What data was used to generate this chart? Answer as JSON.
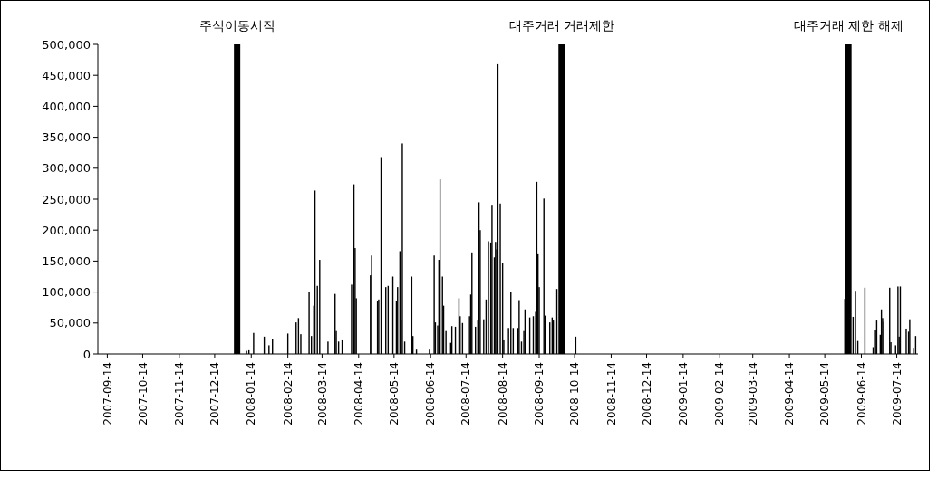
{
  "chart_data": {
    "type": "bar",
    "color": "#000000",
    "x": [
      "2008-01-10",
      "2008-01-12",
      "2008-01-16",
      "2008-01-25",
      "2008-01-29",
      "2008-02-01",
      "2008-02-14",
      "2008-02-21",
      "2008-02-23",
      "2008-02-25",
      "2008-03-03",
      "2008-03-05",
      "2008-03-07",
      "2008-03-08",
      "2008-03-10",
      "2008-03-12",
      "2008-03-19",
      "2008-03-25",
      "2008-03-26",
      "2008-03-28",
      "2008-03-31",
      "2008-04-08",
      "2008-04-10",
      "2008-04-11",
      "2008-04-12",
      "2008-04-24",
      "2008-04-25",
      "2008-04-30",
      "2008-05-01",
      "2008-05-03",
      "2008-05-07",
      "2008-05-09",
      "2008-05-13",
      "2008-05-16",
      "2008-05-17",
      "2008-05-19",
      "2008-05-20",
      "2008-05-21",
      "2008-05-23",
      "2008-05-29",
      "2008-05-30",
      "2008-06-02",
      "2008-06-13",
      "2008-06-17",
      "2008-06-18",
      "2008-06-20",
      "2008-06-21",
      "2008-06-22",
      "2008-06-24",
      "2008-06-25",
      "2008-06-27",
      "2008-07-01",
      "2008-07-02",
      "2008-07-05",
      "2008-07-08",
      "2008-07-09",
      "2008-07-11",
      "2008-07-17",
      "2008-07-18",
      "2008-07-19",
      "2008-07-22",
      "2008-07-24",
      "2008-07-25",
      "2008-07-26",
      "2008-07-29",
      "2008-07-31",
      "2008-08-02",
      "2008-08-04",
      "2008-08-05",
      "2008-08-07",
      "2008-08-08",
      "2008-08-09",
      "2008-08-10",
      "2008-08-12",
      "2008-08-14",
      "2008-08-15",
      "2008-08-19",
      "2008-08-21",
      "2008-08-23",
      "2008-08-27",
      "2008-08-28",
      "2008-08-30",
      "2008-09-01",
      "2008-09-02",
      "2008-09-06",
      "2008-09-09",
      "2008-09-11",
      "2008-09-12",
      "2008-09-13",
      "2008-09-14",
      "2008-09-18",
      "2008-09-19",
      "2008-09-23",
      "2008-09-25",
      "2008-09-26",
      "2008-09-29",
      "2008-10-15",
      "2009-05-31",
      "2009-06-07",
      "2009-06-09",
      "2009-06-11",
      "2009-06-17",
      "2009-06-24",
      "2009-06-26",
      "2009-06-27",
      "2009-06-30",
      "2009-07-01",
      "2009-07-02",
      "2009-07-03",
      "2009-07-08",
      "2009-07-09",
      "2009-07-13",
      "2009-07-15",
      "2009-07-16",
      "2009-07-17",
      "2009-07-22",
      "2009-07-24",
      "2009-07-25",
      "2009-07-28",
      "2009-07-30"
    ],
    "values": [
      5000,
      6000,
      34000,
      28000,
      14000,
      24000,
      33000,
      51000,
      58000,
      32000,
      100000,
      29000,
      78000,
      264000,
      110000,
      152000,
      20000,
      97000,
      37000,
      20000,
      22000,
      112000,
      274000,
      171000,
      90000,
      127000,
      159000,
      86000,
      88000,
      318000,
      108000,
      110000,
      125000,
      86000,
      108000,
      166000,
      54000,
      340000,
      20000,
      125000,
      29000,
      7000,
      7000,
      159000,
      51000,
      46000,
      152000,
      282000,
      125000,
      78000,
      37000,
      18000,
      45000,
      44000,
      90000,
      61000,
      50000,
      61000,
      96000,
      164000,
      44000,
      54000,
      245000,
      200000,
      56000,
      88000,
      182000,
      180000,
      241000,
      156000,
      181000,
      169000,
      468000,
      243000,
      147000,
      22000,
      42000,
      100000,
      42000,
      42000,
      87000,
      20000,
      37000,
      72000,
      59000,
      61000,
      68000,
      278000,
      161000,
      108000,
      251000,
      62000,
      51000,
      59000,
      54000,
      105000,
      28000,
      89000,
      60000,
      102000,
      21000,
      107000,
      11000,
      38000,
      54000,
      31000,
      72000,
      58000,
      52000,
      107000,
      19000,
      14000,
      109000,
      28000,
      109000,
      41000,
      36000,
      56000,
      10000,
      29000
    ],
    "xlim": [
      "2007-09-06",
      "2009-08-01"
    ],
    "xticks": [
      "2007-09-14",
      "2007-10-14",
      "2007-11-14",
      "2007-12-14",
      "2008-01-14",
      "2008-02-14",
      "2008-03-14",
      "2008-04-14",
      "2008-05-14",
      "2008-06-14",
      "2008-07-14",
      "2008-08-14",
      "2008-09-14",
      "2008-10-14",
      "2008-11-14",
      "2008-12-14",
      "2009-01-14",
      "2009-02-14",
      "2009-03-14",
      "2009-04-14",
      "2009-05-14",
      "2009-06-14",
      "2009-07-14"
    ],
    "ylim": [
      0,
      500000
    ],
    "yticks": [
      0,
      {
        "value": 50000,
        "label": "50,000"
      },
      {
        "value": 100000,
        "label": "100,000"
      },
      {
        "value": 150000,
        "label": "150,000"
      },
      {
        "value": 200000,
        "label": "200,000"
      },
      {
        "value": 250000,
        "label": "250,000"
      },
      {
        "value": 300000,
        "label": "300,000"
      },
      {
        "value": 350000,
        "label": "350,000"
      },
      {
        "value": 400000,
        "label": "400,000"
      },
      {
        "value": 450000,
        "label": "450,000"
      },
      {
        "value": 500000,
        "label": "500,000"
      }
    ],
    "ref_lines": [
      {
        "axis": "x",
        "value": "2008-01-02",
        "label": "주식이동시작",
        "color": "#000000"
      },
      {
        "axis": "x",
        "value": "2008-10-03",
        "label": "대주거래 거래제한",
        "color": "#000000"
      },
      {
        "axis": "x",
        "value": "2009-06-03",
        "label": "대주거래 제한 해제",
        "color": "#000000"
      }
    ]
  }
}
